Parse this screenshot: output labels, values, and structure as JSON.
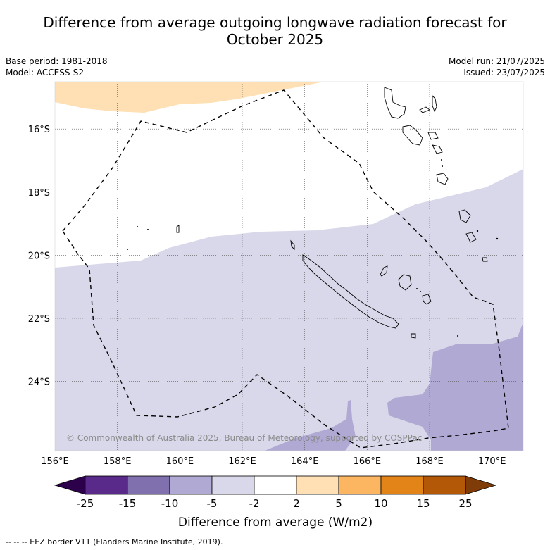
{
  "title_line1": "Difference from average outgoing longwave radiation forecast for",
  "title_line2": "October 2025",
  "meta_left": {
    "base_period": "Base period: 1981-2018",
    "model": "Model: ACCESS-S2"
  },
  "meta_right": {
    "model_run": "Model run: 21/07/2025",
    "issued": "Issued: 23/07/2025"
  },
  "map": {
    "lon_range": [
      156,
      171
    ],
    "lat_range": [
      -26.2,
      -14.5
    ],
    "lat_ticks": [
      {
        "value": -16,
        "label": "16°S"
      },
      {
        "value": -18,
        "label": "18°S"
      },
      {
        "value": -20,
        "label": "20°S"
      },
      {
        "value": -22,
        "label": "22°S"
      },
      {
        "value": -24,
        "label": "24°S"
      }
    ],
    "lon_ticks": [
      {
        "value": 156,
        "label": "156°E"
      },
      {
        "value": 158,
        "label": "158°E"
      },
      {
        "value": 160,
        "label": "160°E"
      },
      {
        "value": 162,
        "label": "162°E"
      },
      {
        "value": 164,
        "label": "164°E"
      },
      {
        "value": 166,
        "label": "166°E"
      },
      {
        "value": 168,
        "label": "168°E"
      },
      {
        "value": 170,
        "label": "170°E"
      }
    ],
    "grid": true,
    "copyright": "© Commonwealth of Australia 2025, Bureau of Meteorology, supported by COSPPac"
  },
  "colorbar": {
    "title": "Difference from average (W/m2)",
    "bins": [
      {
        "color": "#5a2a8a"
      },
      {
        "color": "#8070ad"
      },
      {
        "color": "#b0a9d3"
      },
      {
        "color": "#d8d8ea"
      },
      {
        "color": "#ffffff"
      },
      {
        "color": "#fee0b4"
      },
      {
        "color": "#fcb661"
      },
      {
        "color": "#e28418"
      },
      {
        "color": "#b35806"
      }
    ],
    "extend_low_color": "#2d004b",
    "extend_high_color": "#7f3b08",
    "labels": [
      "-25",
      "-15",
      "-10",
      "-5",
      "-2",
      "2",
      "5",
      "10",
      "15",
      "25"
    ]
  },
  "footnote": "--  --  -- EEZ border V11 (Flanders Marine Institute, 2019)."
}
